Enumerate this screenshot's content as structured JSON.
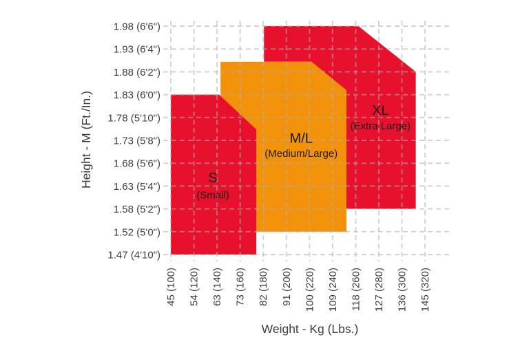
{
  "page": {
    "background": "#ffffff"
  },
  "chart_data": {
    "type": "area",
    "kind": "harness-size-chart",
    "title": "",
    "xlabel": "Weight - Kg (Lbs.)",
    "ylabel": "Height - M (Ft./In.)",
    "grid": true,
    "x_tick_labels": [
      "45 (100)",
      "54 (120)",
      "63 (140)",
      "73 (160)",
      "82 (180)",
      "91 (200)",
      "100 (220)",
      "109 (240)",
      "118 (260)",
      "127 (280)",
      "136 (300)",
      "145 (320)"
    ],
    "y_tick_labels": [
      "1.98 (6'6\")",
      "1.93 (6'4\")",
      "1.88 (6'2\")",
      "1.83 (6'0\")",
      "1.78 (5'10\")",
      "1.73 (5'8\")",
      "1.68 (5'6\")",
      "1.63 (5'4\")",
      "1.58 (5'2\")",
      "1.52 (5'0\")",
      "1.47 (4'10\")"
    ],
    "x_axis_unit": "Kg (Lbs.)",
    "y_axis_unit": "M (Ft./In.)",
    "colors": {
      "red": "#e8112d",
      "orange": "#f2920b",
      "grid": "rgba(175,175,175,0.55)",
      "axis_text": "#3d3d3d",
      "region_text": "#1a1a1a"
    },
    "regions": [
      {
        "name": "xl",
        "label": "XL",
        "sublabel": "(Extra Large)",
        "color": "#e8112d",
        "vertices": [
          [
            4.03,
            0
          ],
          [
            8.12,
            0
          ],
          [
            10.6,
            2
          ],
          [
            10.6,
            8
          ],
          [
            6.09,
            8
          ],
          [
            6.09,
            1.56
          ],
          [
            4.03,
            1.56
          ]
        ],
        "label_pos": [
          9.07,
          3.67
        ],
        "sublabel_pos": [
          9.07,
          4.37
        ]
      },
      {
        "name": "ml",
        "label": "M/L",
        "sublabel": "(Medium/Large)",
        "color": "#f2920b",
        "vertices": [
          [
            2.15,
            1.56
          ],
          [
            6.09,
            1.56
          ],
          [
            7.6,
            2.8
          ],
          [
            7.6,
            9
          ],
          [
            2.15,
            9
          ]
        ],
        "label_pos": [
          5.64,
          4.9
        ],
        "sublabel_pos": [
          5.64,
          5.57
        ]
      },
      {
        "name": "s",
        "label": "S",
        "sublabel": "(Small)",
        "color": "#e8112d",
        "vertices": [
          [
            0,
            3
          ],
          [
            2.09,
            3
          ],
          [
            3.7,
            4.52
          ],
          [
            3.7,
            10
          ],
          [
            0,
            10
          ]
        ],
        "label_pos": [
          1.82,
          6.63
        ],
        "sublabel_pos": [
          1.82,
          7.4
        ]
      }
    ]
  }
}
